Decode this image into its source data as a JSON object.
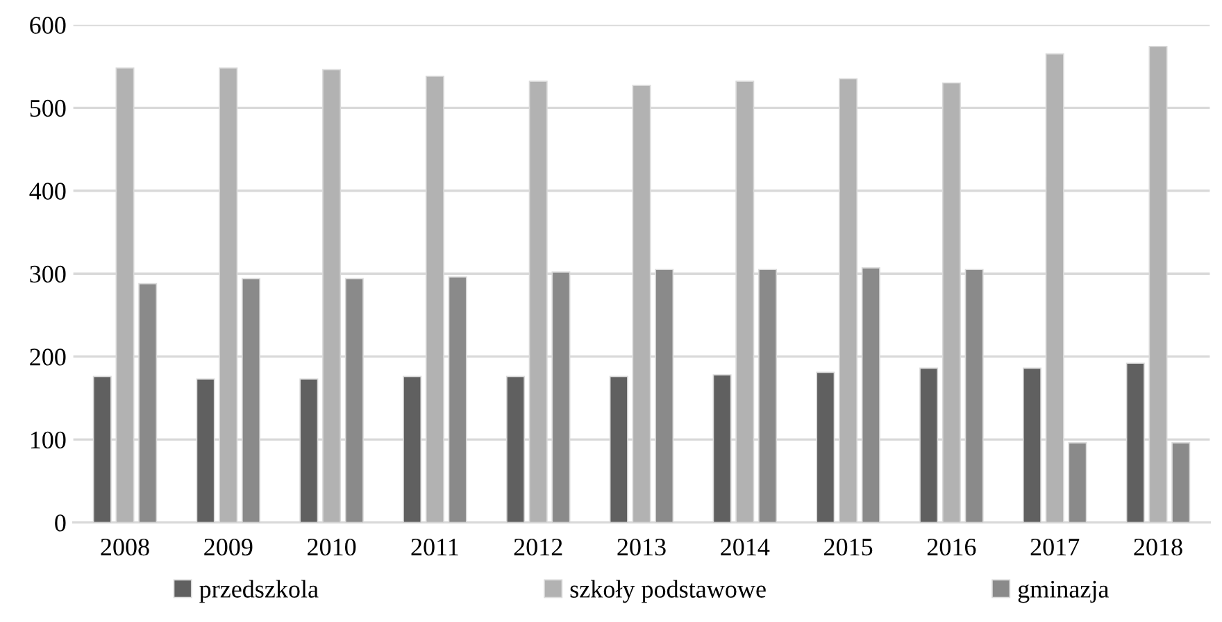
{
  "chart_data": {
    "type": "bar",
    "categories": [
      "2008",
      "2009",
      "2010",
      "2011",
      "2012",
      "2013",
      "2014",
      "2015",
      "2016",
      "2017",
      "2018"
    ],
    "series": [
      {
        "name": "przedszkola",
        "color": "#606060",
        "values": [
          176,
          173,
          173,
          176,
          176,
          176,
          178,
          181,
          186,
          186,
          192
        ]
      },
      {
        "name": "szkoły podstawowe",
        "color": "#b2b2b2",
        "values": [
          548,
          548,
          546,
          538,
          532,
          527,
          532,
          535,
          530,
          565,
          574
        ]
      },
      {
        "name": "gminazja",
        "color": "#8a8a8a",
        "values": [
          288,
          294,
          294,
          296,
          302,
          305,
          305,
          307,
          305,
          96,
          96
        ]
      }
    ],
    "ylim": [
      0,
      600
    ],
    "yticks": [
      0,
      100,
      200,
      300,
      400,
      500,
      600
    ],
    "grid": "y",
    "legend": "bottom"
  }
}
